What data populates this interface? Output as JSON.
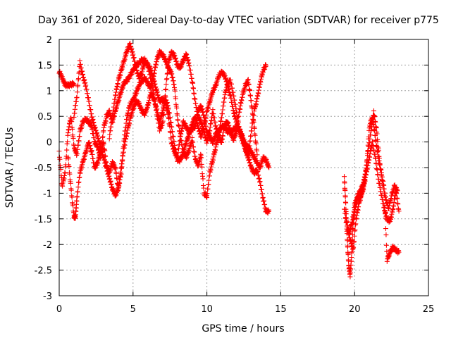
{
  "chart_data": {
    "type": "scatter",
    "title": "Day 361 of 2020, Sidereal Day-to-day VTEC variation (SDTVAR) for receiver p775",
    "xlabel": "GPS time / hours",
    "ylabel": "SDTVAR / TECUs",
    "xlim": [
      0,
      25
    ],
    "ylim": [
      -3,
      2
    ],
    "xticks": [
      0,
      5,
      10,
      15,
      20,
      25
    ],
    "yticks": [
      -3,
      -2.5,
      -2,
      -1.5,
      -1,
      -0.5,
      0,
      0.5,
      1,
      1.5,
      2
    ],
    "grid": true,
    "marker": "+",
    "series": [
      {
        "name": "SDTVAR",
        "color": "#ff0000",
        "tracks": [
          {
            "x": [
              0.0,
              0.2,
              0.4,
              0.6,
              0.8,
              1.0
            ],
            "y": [
              1.38,
              1.25,
              1.12,
              1.1,
              1.12,
              1.13
            ]
          },
          {
            "x": [
              0.0,
              0.2,
              0.4,
              0.6,
              0.8,
              1.0,
              1.2,
              1.4,
              1.6,
              1.8,
              2.0,
              2.2,
              2.4,
              2.6,
              2.8,
              3.0,
              3.2,
              3.4,
              3.6,
              3.8,
              4.0,
              4.2,
              4.4,
              4.6,
              4.8,
              5.0,
              5.2,
              5.4,
              5.6,
              5.8,
              6.0,
              6.2,
              6.4,
              6.6,
              6.8,
              7.0,
              7.2,
              7.4,
              7.6,
              7.8,
              8.0,
              8.2,
              8.4,
              8.6,
              8.8,
              9.0,
              9.2,
              9.4,
              9.6,
              9.8,
              10.0,
              10.2,
              10.4,
              10.6,
              10.8,
              11.0,
              11.2,
              11.4,
              11.6,
              11.8,
              12.0,
              12.2,
              12.4,
              12.6,
              12.8,
              13.0,
              13.2,
              13.4,
              13.6,
              13.8,
              14.0,
              14.2
            ],
            "y": [
              -0.2,
              -0.85,
              -0.6,
              0.2,
              0.5,
              -0.1,
              -0.25,
              0.2,
              0.4,
              0.45,
              0.4,
              0.3,
              0.0,
              -0.1,
              -0.3,
              0.25,
              0.5,
              0.6,
              0.4,
              0.6,
              0.8,
              1.0,
              1.15,
              1.2,
              1.3,
              1.4,
              1.5,
              1.55,
              1.6,
              1.58,
              1.5,
              1.4,
              1.2,
              1.0,
              0.8,
              0.85,
              0.75,
              0.5,
              0.0,
              -0.2,
              -0.3,
              0.1,
              0.4,
              0.3,
              0.2,
              0.25,
              0.3,
              0.6,
              0.7,
              0.5,
              0.2,
              0.1,
              0.0,
              0.15,
              0.2,
              0.3,
              0.3,
              0.2,
              0.2,
              0.25,
              0.3,
              0.25,
              0.1,
              -0.05,
              -0.1,
              -0.2,
              -0.3,
              -0.4,
              -0.5,
              -0.3,
              -0.35,
              -0.5
            ]
          },
          {
            "x": [
              0.6,
              0.8,
              1.0,
              1.1,
              1.2,
              1.4,
              1.6,
              1.8,
              2.0,
              2.2,
              2.4,
              2.6,
              2.8,
              3.0,
              3.2,
              3.4,
              3.6,
              3.8,
              4.0,
              4.2,
              4.4,
              4.6,
              4.8,
              5.0,
              5.2,
              5.4,
              5.6,
              5.8,
              6.0,
              6.2,
              6.4,
              6.6,
              6.8,
              7.0,
              7.2,
              7.4,
              7.6,
              7.8,
              8.0,
              8.2,
              8.4,
              8.6,
              8.8,
              9.0,
              9.2,
              9.4,
              9.6,
              9.8,
              10.0,
              10.2,
              10.4,
              10.6,
              10.8,
              11.0,
              11.2,
              11.4,
              11.6,
              11.8,
              12.0,
              12.2,
              12.4,
              12.6,
              12.8,
              13.0,
              13.2,
              13.4,
              13.6,
              13.8,
              14.0,
              14.2
            ],
            "y": [
              -0.3,
              -0.9,
              -1.45,
              -1.45,
              -1.1,
              -0.6,
              -0.4,
              -0.2,
              0.0,
              -0.2,
              -0.5,
              -0.4,
              -0.2,
              0.0,
              -0.45,
              -0.6,
              -0.4,
              -0.5,
              -0.9,
              -0.6,
              0.1,
              0.5,
              0.75,
              0.8,
              0.95,
              1.1,
              1.2,
              1.25,
              1.15,
              1.05,
              1.3,
              1.6,
              1.75,
              1.7,
              1.6,
              1.45,
              1.35,
              1.1,
              0.5,
              0.1,
              -0.2,
              -0.3,
              -0.15,
              0.05,
              -0.3,
              -0.45,
              -0.25,
              -1.0,
              -1.05,
              -0.6,
              -0.35,
              -0.1,
              0.15,
              0.5,
              0.9,
              1.15,
              1.2,
              0.9,
              0.6,
              0.25,
              0.1,
              -0.1,
              -0.3,
              -0.5,
              -0.6,
              -0.55,
              -0.8,
              -1.1,
              -1.35,
              -1.35
            ]
          },
          {
            "x": [
              1.0,
              1.2,
              1.4,
              1.6,
              1.8,
              2.0,
              2.2,
              2.4,
              2.6,
              2.8,
              3.0,
              3.2,
              3.4,
              3.6,
              3.8,
              4.0,
              4.2,
              4.4,
              4.6,
              4.8,
              5.0,
              5.2,
              5.4,
              5.6,
              5.8,
              6.0,
              6.2,
              6.4,
              6.6,
              6.8,
              7.0,
              7.2,
              7.4,
              7.6,
              7.8,
              8.0,
              8.2,
              8.4,
              8.6,
              8.8,
              9.0,
              9.2,
              9.4,
              9.6,
              9.8,
              10.0,
              10.2,
              10.4,
              10.6,
              10.8,
              11.0,
              11.2,
              11.4,
              11.6,
              11.8,
              12.0,
              12.2,
              12.4,
              12.6,
              12.8,
              13.0,
              13.2,
              13.4,
              13.6,
              13.8,
              14.0
            ],
            "y": [
              0.5,
              0.9,
              1.55,
              1.3,
              1.1,
              0.8,
              0.5,
              0.3,
              0.1,
              -0.1,
              -0.3,
              -0.5,
              -0.7,
              -0.9,
              -1.05,
              -0.9,
              -0.5,
              -0.1,
              0.2,
              0.45,
              0.65,
              0.8,
              0.75,
              0.6,
              0.55,
              0.7,
              0.95,
              0.85,
              0.65,
              0.4,
              0.6,
              0.85,
              0.65,
              0.3,
              -0.05,
              -0.35,
              -0.35,
              -0.2,
              0.0,
              0.15,
              0.35,
              0.5,
              0.3,
              0.1,
              0.3,
              0.6,
              0.8,
              1.0,
              1.1,
              1.3,
              1.35,
              1.3,
              1.1,
              0.9,
              0.6,
              0.4,
              0.2,
              0.05,
              -0.15,
              -0.3,
              0.2,
              0.6,
              0.85,
              1.15,
              1.4,
              1.5
            ]
          },
          {
            "x": [
              3.4,
              3.6,
              3.8,
              4.0,
              4.2,
              4.4,
              4.6,
              4.8,
              5.0,
              5.2,
              5.4,
              5.6,
              5.8,
              6.0,
              6.2,
              6.4,
              6.6,
              6.8,
              7.0,
              7.2,
              7.4,
              7.6,
              7.8,
              8.0,
              8.2,
              8.4,
              8.6,
              8.8,
              9.0,
              9.2,
              9.4,
              9.6,
              9.8,
              10.0,
              10.2,
              10.4,
              10.6,
              10.8,
              11.0,
              11.2,
              11.4,
              11.6,
              11.8,
              12.0,
              12.2,
              12.4,
              12.6,
              12.8,
              13.0,
              13.2,
              13.4
            ],
            "y": [
              0.1,
              0.5,
              0.9,
              1.2,
              1.4,
              1.6,
              1.8,
              1.9,
              1.7,
              1.45,
              1.25,
              1.35,
              1.6,
              1.5,
              1.25,
              0.95,
              0.55,
              0.25,
              0.35,
              1.0,
              1.55,
              1.75,
              1.7,
              1.5,
              1.45,
              1.6,
              1.7,
              1.5,
              1.2,
              0.8,
              0.5,
              0.4,
              0.2,
              0.0,
              0.25,
              0.6,
              0.3,
              0.1,
              0.0,
              0.35,
              0.4,
              0.2,
              0.05,
              0.2,
              0.6,
              0.9,
              1.1,
              1.2,
              0.8,
              0.3,
              -0.25
            ]
          },
          {
            "x": [
              19.3,
              19.4,
              19.5,
              19.6,
              19.7,
              19.8,
              19.9,
              20.0,
              20.2,
              20.4,
              20.6,
              20.8,
              21.0,
              21.2,
              21.4,
              21.6,
              21.8,
              22.0,
              22.2,
              22.4,
              22.6,
              22.8,
              23.0
            ],
            "y": [
              -0.7,
              -1.2,
              -1.9,
              -2.4,
              -2.6,
              -2.2,
              -1.6,
              -1.2,
              -1.1,
              -1.05,
              -0.9,
              -0.6,
              -0.3,
              0.0,
              -0.3,
              -0.7,
              -1.0,
              -1.3,
              -1.5,
              -1.55,
              -1.3,
              -0.95,
              -1.35
            ]
          },
          {
            "x": [
              19.4,
              19.6,
              19.8,
              20.0,
              20.2,
              20.4,
              20.6,
              20.8,
              21.0,
              21.2,
              21.4,
              21.6,
              21.8,
              22.0,
              22.2,
              22.4,
              22.6,
              22.8,
              23.0
            ],
            "y": [
              -1.5,
              -1.8,
              -1.6,
              -1.35,
              -1.05,
              -0.95,
              -0.8,
              -0.5,
              0.3,
              0.5,
              0.1,
              -0.3,
              -0.6,
              -0.9,
              -2.3,
              -2.15,
              -2.05,
              -2.1,
              -2.15
            ]
          },
          {
            "x": [
              19.3,
              19.5,
              19.7,
              19.9,
              20.1,
              20.3,
              20.5,
              20.7,
              20.9,
              21.1,
              21.3,
              21.5,
              21.7,
              21.9,
              22.1,
              22.3,
              22.5,
              22.7,
              22.9
            ],
            "y": [
              -1.3,
              -1.6,
              -1.9,
              -2.1,
              -1.5,
              -1.2,
              -1.0,
              -0.7,
              -0.2,
              0.2,
              0.6,
              0.2,
              -0.4,
              -0.8,
              -1.1,
              -1.3,
              -1.05,
              -0.85,
              -0.95
            ]
          }
        ]
      }
    ]
  }
}
